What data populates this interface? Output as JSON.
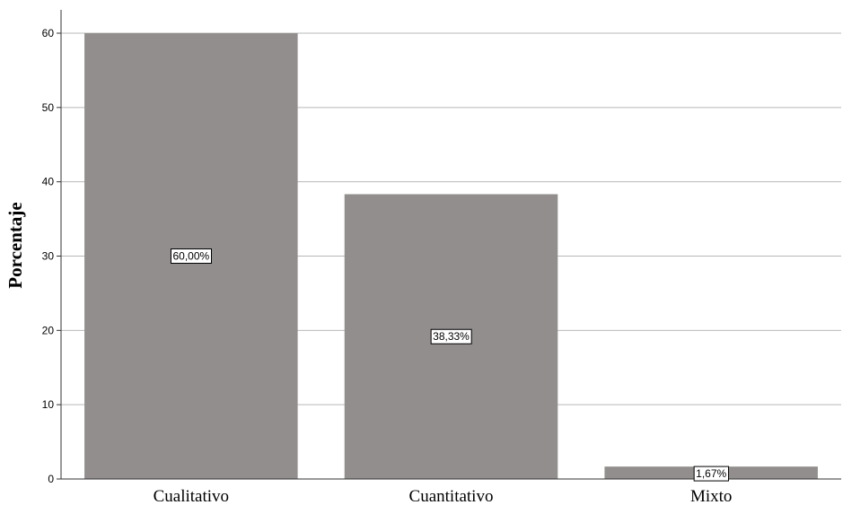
{
  "chart_data": {
    "type": "bar",
    "categories": [
      "Cualitativo",
      "Cuantitativo",
      "Mixto"
    ],
    "values": [
      60.0,
      38.33,
      1.67
    ],
    "data_labels": [
      "60,00%",
      "38,33%",
      "1,67%"
    ],
    "title": "",
    "xlabel": "",
    "ylabel": "Porcentaje",
    "ylim": [
      0,
      60
    ],
    "yticks": [
      0,
      10,
      20,
      30,
      40,
      50,
      60
    ],
    "ytick_labels": [
      "0",
      "10",
      "20",
      "30",
      "40",
      "50",
      "60"
    ],
    "grid": "horizontal",
    "bar_color": "#928e8d"
  }
}
